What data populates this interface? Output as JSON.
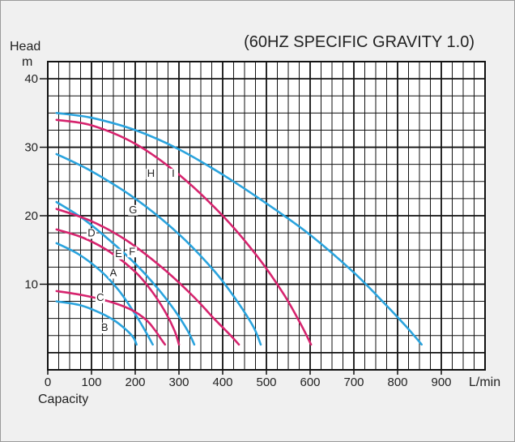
{
  "chart_data": {
    "type": "line",
    "title": "(60HZ SPECIFIC GRAVITY 1.0)",
    "xlabel": "Capacity",
    "xunit": "L/min",
    "ylabel": "Head",
    "yunit": "m",
    "xlim": [
      0,
      1000
    ],
    "ylim": [
      -2.5,
      42.5
    ],
    "x_ticks": [
      0,
      100,
      200,
      300,
      400,
      500,
      600,
      700,
      800,
      900
    ],
    "x_tick_labels": [
      "0",
      "100",
      "200",
      "300",
      "400",
      "500",
      "600",
      "700",
      "800",
      "900"
    ],
    "y_ticks": [
      10,
      20,
      30,
      40
    ],
    "y_tick_labels": [
      "10",
      "20",
      "30",
      "40"
    ],
    "grid": true,
    "colors": {
      "blue": "#2aa3dd",
      "magenta": "#d6246e"
    },
    "series": [
      {
        "name": "A",
        "color": "#2aa3dd",
        "label_at": [
          150,
          11.3
        ],
        "x": [
          20,
          70,
          120,
          160,
          190,
          210,
          228,
          240
        ],
        "y": [
          16,
          14.4,
          12,
          9.3,
          6.6,
          4.6,
          2.6,
          1.2
        ]
      },
      {
        "name": "B",
        "color": "#2aa3dd",
        "label_at": [
          130,
          3.3
        ],
        "x": [
          20,
          70,
          110,
          150,
          180,
          196,
          203
        ],
        "y": [
          7.5,
          7.0,
          6.1,
          4.8,
          3.3,
          2.2,
          1.2
        ]
      },
      {
        "name": "C",
        "color": "#d6246e",
        "label_at": [
          120,
          7.7
        ],
        "x": [
          20,
          80,
          140,
          190,
          225,
          245,
          258,
          268
        ],
        "y": [
          9.0,
          8.4,
          7.5,
          6.3,
          4.8,
          3.3,
          2.1,
          1.2
        ]
      },
      {
        "name": "D",
        "color": "#d6246e",
        "label_at": [
          100,
          17.1
        ],
        "x": [
          20,
          80,
          140,
          200,
          240,
          270,
          290,
          300
        ],
        "y": [
          18,
          16.8,
          14.8,
          11.8,
          8.8,
          5.8,
          3.2,
          1.2
        ]
      },
      {
        "name": "E",
        "color": "#2aa3dd",
        "label_at": [
          162,
          14.1
        ],
        "x": [
          20,
          80,
          140,
          200,
          250,
          290,
          320,
          335
        ],
        "y": [
          22,
          19.6,
          16.5,
          13,
          9.5,
          6.2,
          3.2,
          1.2
        ]
      },
      {
        "name": "F",
        "color": "#d6246e",
        "label_at": [
          193,
          14.4
        ],
        "x": [
          20,
          100,
          180,
          260,
          330,
          380,
          420,
          437
        ],
        "y": [
          21,
          19.2,
          16.4,
          12.5,
          8.4,
          5.0,
          2.4,
          1.2
        ]
      },
      {
        "name": "G",
        "color": "#2aa3dd",
        "label_at": [
          195,
          20.5
        ],
        "x": [
          20,
          100,
          200,
          300,
          380,
          430,
          470,
          487
        ],
        "y": [
          29,
          26.5,
          22.5,
          17.3,
          12,
          7.8,
          3.8,
          1.2
        ]
      },
      {
        "name": "H",
        "color": "#d6246e",
        "label_at": [
          236,
          25.8
        ],
        "x": [
          20,
          100,
          200,
          300,
          400,
          480,
          540,
          580,
          602
        ],
        "y": [
          34,
          33.2,
          30.5,
          26,
          20,
          14,
          8.5,
          4,
          1.2
        ]
      },
      {
        "name": "I",
        "color": "#2aa3dd",
        "label_at": [
          287,
          25.8
        ],
        "x": [
          20,
          100,
          200,
          300,
          400,
          500,
          600,
          700,
          770,
          820,
          855
        ],
        "y": [
          35,
          34.3,
          32.5,
          29.7,
          26,
          21.8,
          17.2,
          11.7,
          7.2,
          3.8,
          1.2
        ]
      }
    ]
  }
}
